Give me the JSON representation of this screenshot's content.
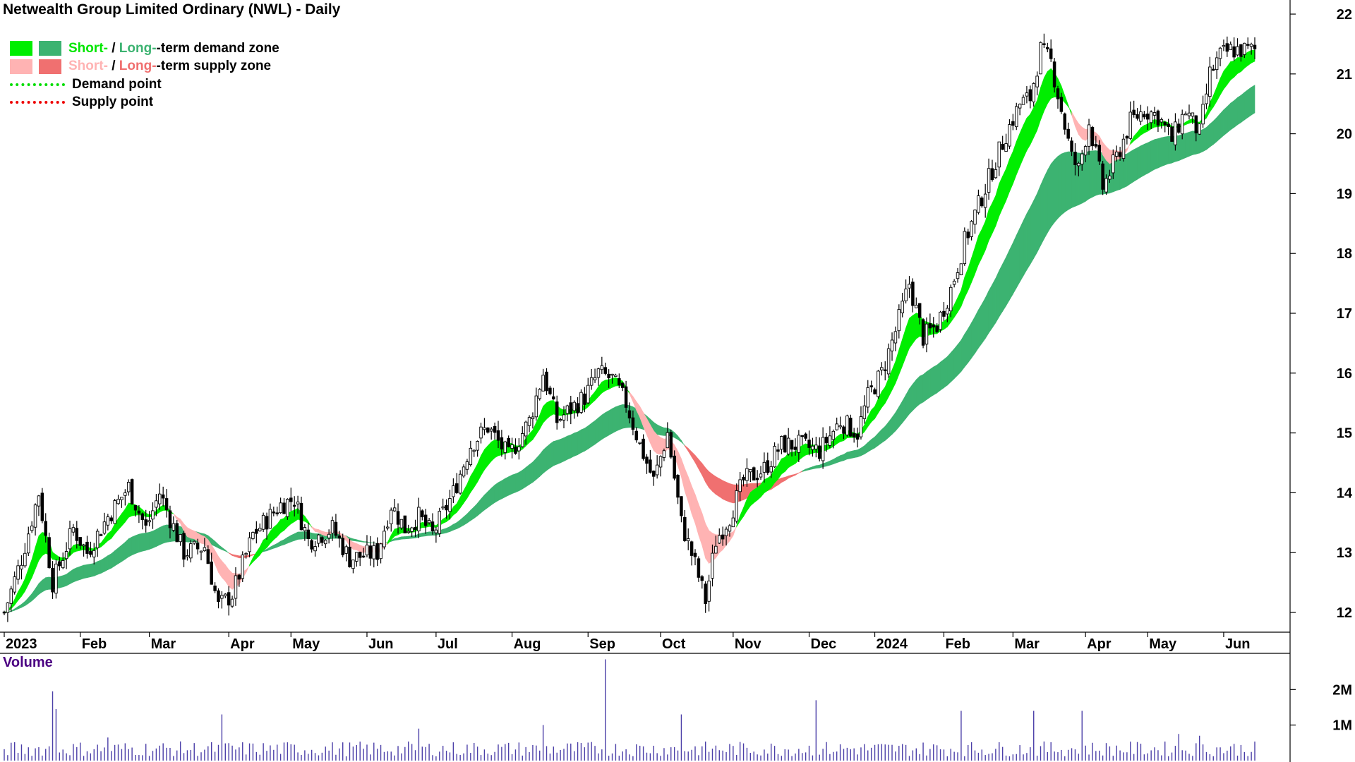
{
  "chart_data": [
    {
      "type": "candlestick",
      "title": "Netwealth Group Limited Ordinary (NWL) - Daily",
      "y_ticks": [
        12,
        13,
        14,
        15,
        16,
        17,
        18,
        19,
        20,
        21,
        22
      ],
      "ylim": [
        11.7,
        22.1
      ],
      "x_ticks": [
        {
          "label": "2023",
          "t": 0
        },
        {
          "label": "Feb",
          "t": 22
        },
        {
          "label": "Mar",
          "t": 42
        },
        {
          "label": "Apr",
          "t": 65
        },
        {
          "label": "May",
          "t": 83
        },
        {
          "label": "Jun",
          "t": 105
        },
        {
          "label": "Jul",
          "t": 125
        },
        {
          "label": "Aug",
          "t": 147
        },
        {
          "label": "Sep",
          "t": 169
        },
        {
          "label": "Oct",
          "t": 190
        },
        {
          "label": "Nov",
          "t": 211
        },
        {
          "label": "Dec",
          "t": 233
        },
        {
          "label": "2024",
          "t": 252
        },
        {
          "label": "Feb",
          "t": 272
        },
        {
          "label": "Mar",
          "t": 292
        },
        {
          "label": "Apr",
          "t": 313
        },
        {
          "label": "May",
          "t": 331
        },
        {
          "label": "Jun",
          "t": 353
        }
      ],
      "t_max": 362,
      "price_path": [
        [
          0,
          12.0
        ],
        [
          5,
          12.9
        ],
        [
          10,
          14.0
        ],
        [
          14,
          12.5
        ],
        [
          20,
          13.4
        ],
        [
          24,
          13.0
        ],
        [
          30,
          13.6
        ],
        [
          36,
          14.1
        ],
        [
          41,
          13.4
        ],
        [
          45,
          14.0
        ],
        [
          52,
          13.0
        ],
        [
          58,
          13.1
        ],
        [
          62,
          12.1
        ],
        [
          66,
          12.3
        ],
        [
          72,
          13.3
        ],
        [
          80,
          13.8
        ],
        [
          84,
          13.9
        ],
        [
          88,
          13.2
        ],
        [
          95,
          13.4
        ],
        [
          100,
          12.9
        ],
        [
          108,
          13.0
        ],
        [
          112,
          13.8
        ],
        [
          116,
          13.4
        ],
        [
          120,
          13.6
        ],
        [
          124,
          13.3
        ],
        [
          130,
          14.0
        ],
        [
          135,
          14.8
        ],
        [
          140,
          15.1
        ],
        [
          146,
          14.6
        ],
        [
          152,
          15.2
        ],
        [
          156,
          16.0
        ],
        [
          160,
          15.2
        ],
        [
          164,
          15.4
        ],
        [
          168,
          15.6
        ],
        [
          172,
          16.0
        ],
        [
          176,
          15.9
        ],
        [
          180,
          15.5
        ],
        [
          184,
          14.8
        ],
        [
          188,
          14.2
        ],
        [
          192,
          15.0
        ],
        [
          196,
          13.5
        ],
        [
          200,
          12.8
        ],
        [
          203,
          12.2
        ],
        [
          206,
          13.2
        ],
        [
          210,
          13.6
        ],
        [
          214,
          14.2
        ],
        [
          220,
          14.4
        ],
        [
          225,
          14.8
        ],
        [
          230,
          14.8
        ],
        [
          236,
          14.7
        ],
        [
          242,
          15.2
        ],
        [
          247,
          15.0
        ],
        [
          250,
          15.6
        ],
        [
          254,
          16.0
        ],
        [
          258,
          16.7
        ],
        [
          262,
          17.5
        ],
        [
          266,
          16.6
        ],
        [
          270,
          16.8
        ],
        [
          274,
          17.4
        ],
        [
          278,
          18.2
        ],
        [
          282,
          18.8
        ],
        [
          286,
          19.4
        ],
        [
          290,
          20.0
        ],
        [
          294,
          20.5
        ],
        [
          297,
          20.6
        ],
        [
          300,
          21.4
        ],
        [
          303,
          21.2
        ],
        [
          306,
          20.4
        ],
        [
          309,
          19.6
        ],
        [
          311,
          19.4
        ],
        [
          314,
          20.2
        ],
        [
          318,
          19.1
        ],
        [
          322,
          19.6
        ],
        [
          326,
          20.2
        ],
        [
          330,
          20.4
        ],
        [
          334,
          20.3
        ],
        [
          338,
          19.9
        ],
        [
          342,
          20.4
        ],
        [
          346,
          20.0
        ],
        [
          349,
          21.0
        ],
        [
          352,
          21.3
        ],
        [
          355,
          21.4
        ]
      ],
      "series": [
        {
          "name": "Short-term demand zone",
          "color": "#00ee00"
        },
        {
          "name": "Long-term demand zone",
          "color": "#3cb371"
        },
        {
          "name": "Short-term supply zone",
          "color": "#ffb3b3"
        },
        {
          "name": "Long-term supply zone",
          "color": "#f07070"
        }
      ],
      "zone_fill_colors": {
        "short_demand": "#00ee00",
        "long_demand": "#3cb371",
        "short_supply": "#ffb3b3",
        "long_supply": "#f07070",
        "overlap": "#ff6f2d"
      },
      "legend": {
        "short": "Short-",
        "slash": " / ",
        "long": "Long-",
        "demand_zone": "-term demand zone",
        "supply_zone": "-term supply zone",
        "demand_point": "Demand point",
        "supply_point": "Supply point"
      },
      "legend_placement": "top-left",
      "grid": false
    },
    {
      "type": "bar",
      "title": "Volume",
      "y_ticks": [
        {
          "label": "2M",
          "value": 2000000
        },
        {
          "label": "1M",
          "value": 1000000
        }
      ],
      "ylim": [
        0,
        2900000
      ],
      "volume_spikes": [
        {
          "t": 14,
          "value": 1950000
        },
        {
          "t": 15,
          "value": 1450000
        },
        {
          "t": 63,
          "value": 1300000
        },
        {
          "t": 156,
          "value": 1000000
        },
        {
          "t": 174,
          "value": 2850000
        },
        {
          "t": 235,
          "value": 1700000
        },
        {
          "t": 277,
          "value": 1400000
        },
        {
          "t": 298,
          "value": 1400000
        },
        {
          "t": 312,
          "value": 1400000
        },
        {
          "t": 196,
          "value": 1300000
        },
        {
          "t": 30,
          "value": 650000
        },
        {
          "t": 120,
          "value": 900000
        },
        {
          "t": 340,
          "value": 750000
        },
        {
          "t": 346,
          "value": 700000
        }
      ],
      "volume_base": 300000
    }
  ]
}
